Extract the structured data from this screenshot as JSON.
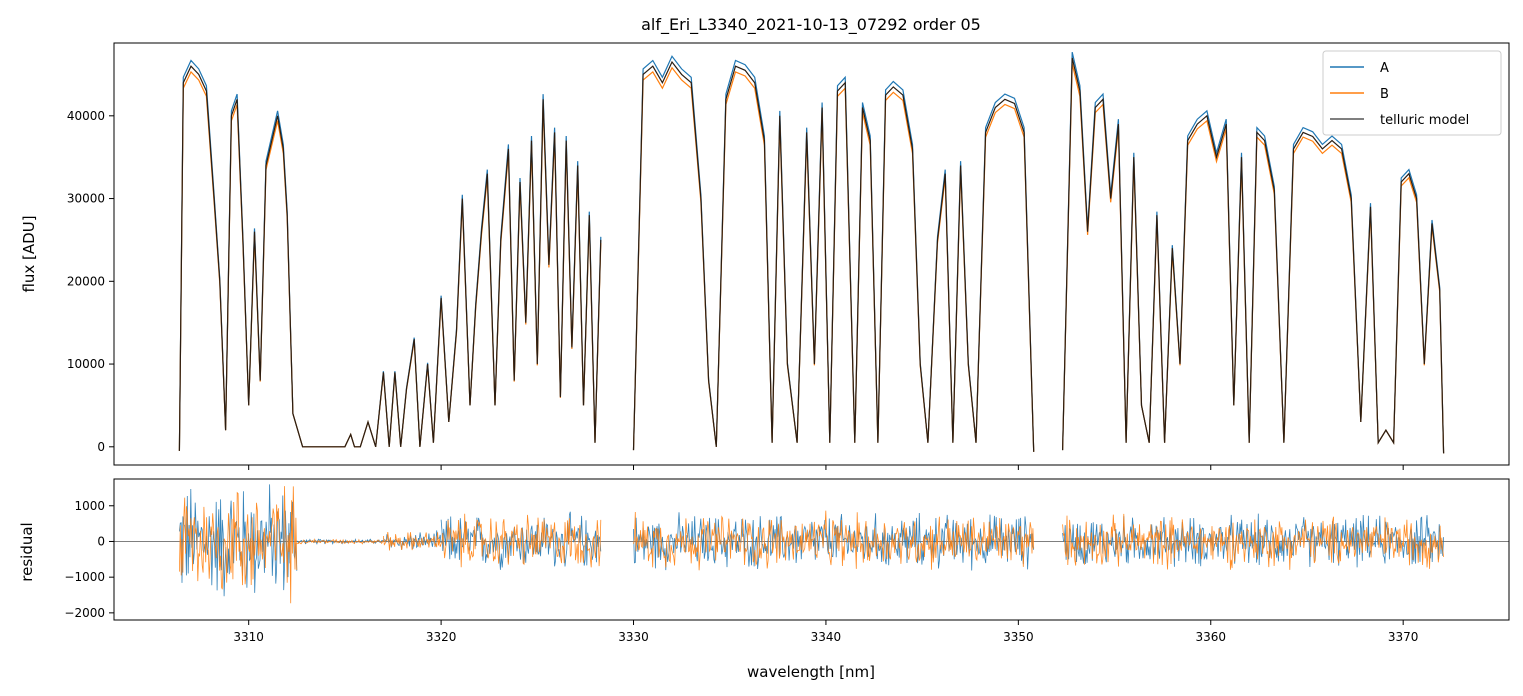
{
  "chart_data": [
    {
      "type": "line",
      "title": "alf_Eri_L3340_2021-10-13_07292  order 05",
      "ylabel": "flux [ADU]",
      "xlabel": "",
      "xlim": [
        3303.0,
        3375.5
      ],
      "ylim": [
        -2200,
        48800
      ],
      "yticks": [
        0,
        10000,
        20000,
        30000,
        40000
      ],
      "ytick_labels": [
        "0",
        "10000",
        "20000",
        "30000",
        "40000"
      ],
      "grid": false,
      "legend": {
        "placement": "top-right",
        "entries": [
          "A",
          "B",
          "telluric model"
        ]
      },
      "segments": [
        {
          "x": [
            3306.4,
            3306.6,
            3307.0,
            3307.4,
            3307.8,
            3308.2,
            3308.5,
            3308.8,
            3309.1,
            3309.4,
            3309.7,
            3310.0,
            3310.3,
            3310.6,
            3310.9,
            3311.2,
            3311.5,
            3311.8,
            3312.0,
            3312.3,
            3312.8,
            3313.5,
            3314.5,
            3315.0,
            3315.3,
            3315.5,
            3315.8,
            3316.2,
            3316.6,
            3317.0,
            3317.3,
            3317.6,
            3317.9,
            3318.2,
            3318.6,
            3318.9,
            3319.3,
            3319.6,
            3320.0,
            3320.4,
            3320.8,
            3321.1,
            3321.5,
            3321.8,
            3322.1,
            3322.4,
            3322.8,
            3323.1,
            3323.5,
            3323.8,
            3324.1,
            3324.4,
            3324.7,
            3325.0,
            3325.3,
            3325.6,
            3325.9,
            3326.2,
            3326.5,
            3326.8,
            3327.1,
            3327.4,
            3327.7,
            3328.0,
            3328.3
          ],
          "y": [
            -500,
            44000,
            46000,
            45000,
            43000,
            30000,
            20000,
            2000,
            40000,
            42000,
            25000,
            5000,
            26000,
            8000,
            34000,
            37000,
            40000,
            36000,
            28000,
            4000,
            0,
            0,
            0,
            0,
            1500,
            0,
            0,
            3000,
            0,
            9000,
            0,
            9000,
            0,
            7000,
            13000,
            0,
            10000,
            500,
            18000,
            3000,
            14000,
            30000,
            5000,
            17000,
            26000,
            33000,
            5000,
            25000,
            36000,
            8000,
            32000,
            15000,
            37000,
            10000,
            42000,
            22000,
            38000,
            6000,
            37000,
            12000,
            34000,
            5000,
            28000,
            500,
            25000
          ]
        },
        {
          "x": [
            3330.0,
            3330.5,
            3331.0,
            3331.5,
            3332.0,
            3332.5,
            3333.0,
            3333.5,
            3333.9,
            3334.3,
            3334.8,
            3335.3,
            3335.8,
            3336.3,
            3336.8,
            3337.2,
            3337.6,
            3338.0,
            3338.5,
            3339.0,
            3339.4,
            3339.8,
            3340.2,
            3340.6,
            3341.0,
            3341.5,
            3341.9,
            3342.3,
            3342.7,
            3343.1,
            3343.5,
            3344.0,
            3344.5,
            3344.9,
            3345.3,
            3345.8,
            3346.2,
            3346.6,
            3347.0,
            3347.4,
            3347.8,
            3348.3,
            3348.8,
            3349.3,
            3349.8,
            3350.3,
            3350.8
          ],
          "y": [
            -400,
            45000,
            46000,
            44000,
            46500,
            45000,
            44000,
            30000,
            8000,
            0,
            42000,
            46000,
            45500,
            44000,
            37000,
            500,
            40000,
            10000,
            500,
            38000,
            10000,
            41000,
            500,
            43000,
            44000,
            500,
            41000,
            37000,
            500,
            42500,
            43500,
            42500,
            36000,
            10000,
            500,
            25000,
            33000,
            500,
            34000,
            10000,
            500,
            38000,
            41000,
            42000,
            41500,
            38000,
            -600
          ]
        },
        {
          "x": [
            3352.3,
            3352.8,
            3353.2,
            3353.6,
            3354.0,
            3354.4,
            3354.8,
            3355.2,
            3355.6,
            3356.0,
            3356.4,
            3356.8,
            3357.2,
            3357.6,
            3358.0,
            3358.4,
            3358.8,
            3359.3,
            3359.8,
            3360.3,
            3360.8,
            3361.2,
            3361.6,
            3362.0,
            3362.4,
            3362.8,
            3363.3,
            3363.8,
            3364.3,
            3364.8,
            3365.3,
            3365.8,
            3366.3,
            3366.8,
            3367.3,
            3367.8,
            3368.3,
            3368.7,
            3369.1,
            3369.5,
            3369.9,
            3370.3,
            3370.7,
            3371.1,
            3371.5,
            3371.9,
            3372.1
          ],
          "y": [
            -400,
            47000,
            43000,
            26000,
            41000,
            42000,
            30000,
            39000,
            500,
            35000,
            5000,
            500,
            28000,
            500,
            24000,
            10000,
            37000,
            39000,
            40000,
            35000,
            39000,
            5000,
            35000,
            500,
            38000,
            37000,
            31000,
            500,
            36000,
            38000,
            37500,
            36000,
            37000,
            36000,
            30000,
            3000,
            29000,
            500,
            2000,
            500,
            32000,
            33000,
            30000,
            10000,
            27000,
            19000,
            -800
          ]
        }
      ]
    },
    {
      "type": "line",
      "title": "",
      "xlabel": "wavelength [nm]",
      "ylabel": "residual",
      "xlim": [
        3303.0,
        3375.5
      ],
      "ylim": [
        -2200,
        1750
      ],
      "xticks": [
        3310,
        3320,
        3330,
        3340,
        3350,
        3360,
        3370
      ],
      "xtick_labels": [
        "3310",
        "3320",
        "3330",
        "3340",
        "3350",
        "3360",
        "3370"
      ],
      "yticks": [
        -2000,
        -1000,
        0,
        1000
      ],
      "ytick_labels": [
        "−2000",
        "−1000",
        "0",
        "1000"
      ],
      "zero_line": true,
      "noise_ranges": [
        {
          "x": [
            3306.4,
            3312.5
          ],
          "amp": 1500
        },
        {
          "x": [
            3312.5,
            3317.0
          ],
          "amp": 60
        },
        {
          "x": [
            3317.0,
            3320.0
          ],
          "amp": 250
        },
        {
          "x": [
            3320.0,
            3328.3
          ],
          "amp": 700
        },
        {
          "x": [
            3330.0,
            3350.8
          ],
          "amp": 700
        },
        {
          "x": [
            3352.3,
            3372.1
          ],
          "amp": 650
        }
      ]
    }
  ],
  "colors": {
    "A": "#1f77b4",
    "B": "#ff7f0e",
    "telluric": "#555555"
  }
}
